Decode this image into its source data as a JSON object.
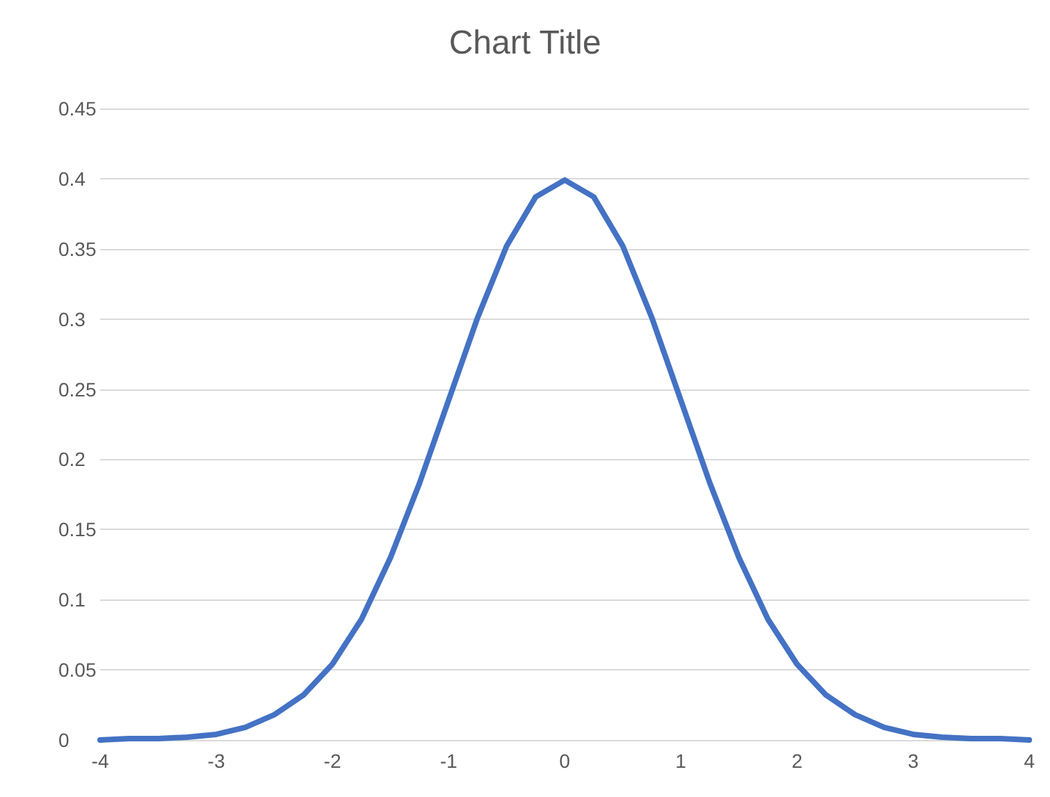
{
  "chart_data": {
    "type": "line",
    "title": "Chart Title",
    "x": [
      -4,
      -3.75,
      -3.5,
      -3.25,
      -3,
      -2.75,
      -2.5,
      -2.25,
      -2,
      -1.75,
      -1.5,
      -1.25,
      -1,
      -0.75,
      -0.5,
      -0.25,
      0,
      0.25,
      0.5,
      0.75,
      1,
      1.25,
      1.5,
      1.75,
      2,
      2.25,
      2.5,
      2.75,
      3,
      3.25,
      3.5,
      3.75,
      4
    ],
    "series": [
      {
        "color": "#4472c4",
        "values": [
          0,
          0.001,
          0.001,
          0.002,
          0.004,
          0.009,
          0.018,
          0.032,
          0.054,
          0.086,
          0.13,
          0.183,
          0.242,
          0.301,
          0.352,
          0.387,
          0.399,
          0.387,
          0.352,
          0.301,
          0.242,
          0.183,
          0.13,
          0.086,
          0.054,
          0.032,
          0.018,
          0.009,
          0.004,
          0.002,
          0.001,
          0.001,
          0
        ]
      }
    ],
    "xlim": [
      -4,
      4
    ],
    "xticks": [
      -4,
      -3,
      -2,
      -1,
      0,
      1,
      2,
      3,
      4
    ],
    "ylim": [
      0,
      0.45
    ],
    "yticks": [
      0,
      0.05,
      0.1,
      0.15,
      0.2,
      0.25,
      0.3,
      0.35,
      0.4,
      0.45
    ],
    "grid": "y",
    "marker": "none",
    "line_style": "solid"
  }
}
